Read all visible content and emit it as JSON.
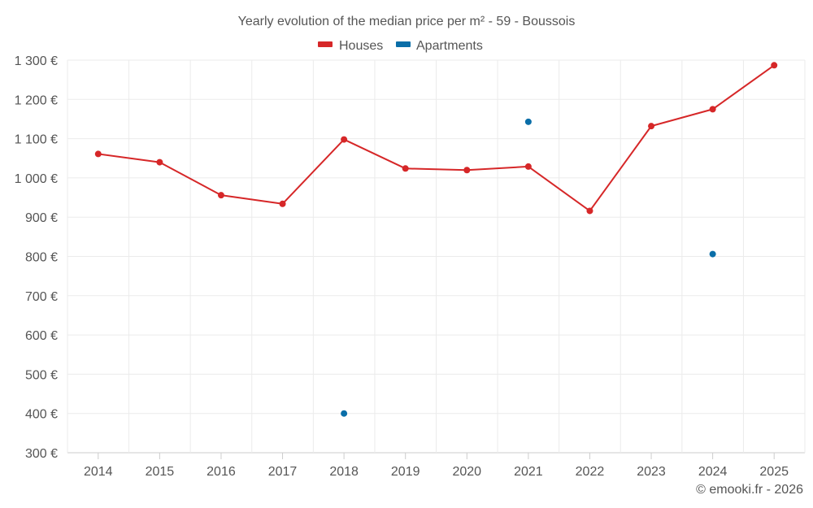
{
  "chart_data": {
    "type": "line",
    "title": "Yearly evolution of the median price per m² - 59 - Boussois",
    "xlabel": "",
    "ylabel": "",
    "categories": [
      "2014",
      "2015",
      "2016",
      "2017",
      "2018",
      "2019",
      "2020",
      "2021",
      "2022",
      "2023",
      "2024",
      "2025"
    ],
    "ylim": [
      300,
      1300
    ],
    "yticks": [
      300,
      400,
      500,
      600,
      700,
      800,
      900,
      1000,
      1100,
      1200,
      1300
    ],
    "ytick_labels": [
      "300 €",
      "400 €",
      "500 €",
      "600 €",
      "700 €",
      "800 €",
      "900 €",
      "1 000 €",
      "1 100 €",
      "1 200 €",
      "1 300 €"
    ],
    "grid": true,
    "legend_position": "top-center",
    "series": [
      {
        "name": "Houses",
        "color": "#d62728",
        "line": true,
        "values": [
          1061,
          1040,
          956,
          934,
          1098,
          1024,
          1020,
          1029,
          916,
          1132,
          1175,
          1287
        ]
      },
      {
        "name": "Apartments",
        "color": "#0a6ea8",
        "line": false,
        "values": [
          null,
          null,
          null,
          null,
          400,
          null,
          null,
          1143,
          null,
          null,
          806,
          null
        ]
      }
    ]
  },
  "credit": "© emooki.fr - 2026"
}
